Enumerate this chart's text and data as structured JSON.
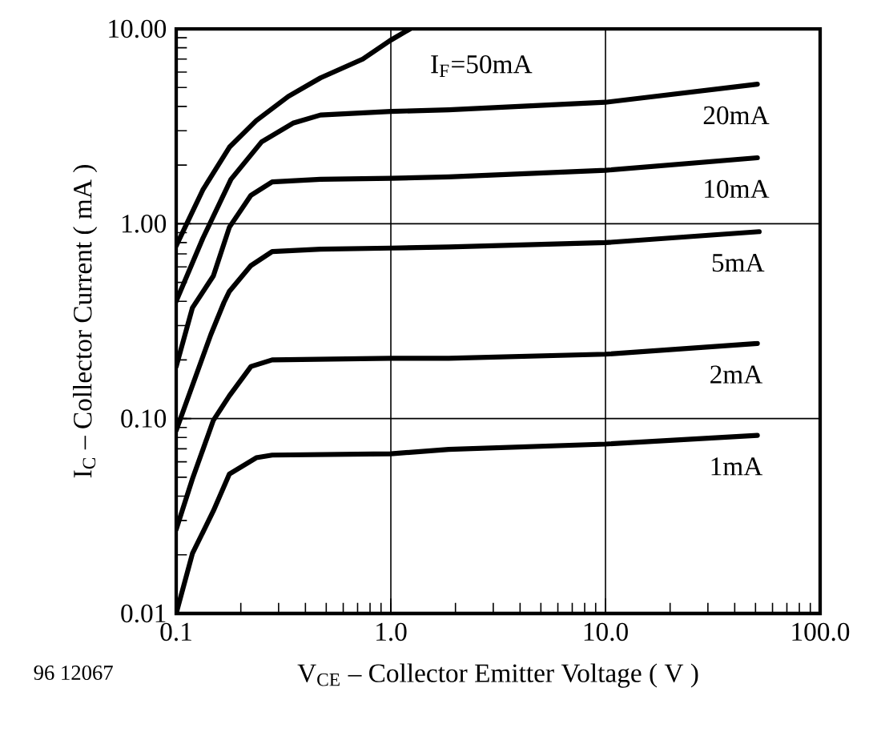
{
  "chart_data": {
    "type": "line",
    "xlabel": "V$_{CE}$ – Collector Emitter Voltage ( V )",
    "ylabel": "I$_{C}$ – Collector Current ( mA )",
    "annotations": [
      "96 12067"
    ],
    "log": "xy",
    "grid": true,
    "line_style": "solid",
    "xlim": [
      0.1,
      100
    ],
    "ylim": [
      0.01,
      10
    ],
    "xticks": [
      {
        "value": 0.1,
        "label": "0.1"
      },
      {
        "value": 1,
        "label": "1.0"
      },
      {
        "value": 10,
        "label": "10.0"
      },
      {
        "value": 100,
        "label": "100.0"
      }
    ],
    "yticks": [
      {
        "value": 0.01,
        "label": "0.01"
      },
      {
        "value": 0.1,
        "label": "0.10"
      },
      {
        "value": 1,
        "label": "1.00"
      },
      {
        "value": 10,
        "label": "10.00"
      }
    ],
    "series": [
      {
        "name": "I$_{F}$=50mA",
        "color": "#000000",
        "x": [
          0.1,
          0.133,
          0.177,
          0.236,
          0.333,
          0.47,
          0.74,
          0.99,
          1.23
        ],
        "values": [
          0.77,
          1.49,
          2.47,
          3.38,
          4.5,
          5.6,
          7.0,
          8.7,
          10
        ]
      },
      {
        "name": "20mA",
        "color": "#000000",
        "x": [
          0.1,
          0.133,
          0.18,
          0.25,
          0.35,
          0.47,
          1.0,
          1.86,
          10,
          51
        ],
        "values": [
          0.4,
          0.84,
          1.69,
          2.63,
          3.28,
          3.61,
          3.77,
          3.84,
          4.2,
          5.2
        ]
      },
      {
        "name": "10mA",
        "color": "#000000",
        "x": [
          0.1,
          0.119,
          0.149,
          0.177,
          0.223,
          0.28,
          0.47,
          1.0,
          1.86,
          10,
          51
        ],
        "values": [
          0.185,
          0.37,
          0.54,
          0.96,
          1.4,
          1.64,
          1.69,
          1.71,
          1.74,
          1.88,
          2.18
        ]
      },
      {
        "name": "5mA",
        "color": "#000000",
        "x": [
          0.1,
          0.145,
          0.167,
          0.177,
          0.223,
          0.28,
          0.47,
          1.0,
          1.86,
          10,
          52
        ],
        "values": [
          0.087,
          0.27,
          0.395,
          0.45,
          0.61,
          0.72,
          0.74,
          0.75,
          0.76,
          0.8,
          0.91
        ]
      },
      {
        "name": "2mA",
        "color": "#000000",
        "x": [
          0.1,
          0.119,
          0.149,
          0.177,
          0.223,
          0.28,
          1.0,
          1.86,
          10,
          51
        ],
        "values": [
          0.027,
          0.049,
          0.098,
          0.131,
          0.185,
          0.2,
          0.204,
          0.204,
          0.214,
          0.243
        ]
      },
      {
        "name": "1mA",
        "color": "#000000",
        "x": [
          0.1,
          0.119,
          0.149,
          0.177,
          0.236,
          0.28,
          1.0,
          1.86,
          10,
          51
        ],
        "values": [
          0.01,
          0.0203,
          0.0336,
          0.052,
          0.063,
          0.065,
          0.066,
          0.0695,
          0.074,
          0.082
        ]
      }
    ]
  }
}
